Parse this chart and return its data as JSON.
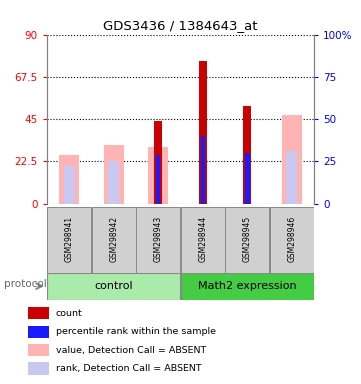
{
  "title": "GDS3436 / 1384643_at",
  "samples": [
    "GSM298941",
    "GSM298942",
    "GSM298943",
    "GSM298944",
    "GSM298945",
    "GSM298946"
  ],
  "left_ylim": [
    0,
    90
  ],
  "left_yticks": [
    0,
    22.5,
    45,
    67.5,
    90
  ],
  "left_yticklabels": [
    "0",
    "22.5",
    "45",
    "67.5",
    "90"
  ],
  "right_yticks": [
    0,
    25,
    50,
    75,
    100
  ],
  "right_yticklabels": [
    "0",
    "25",
    "50",
    "75",
    "100%"
  ],
  "count_values": [
    0,
    0,
    44,
    76,
    52,
    0
  ],
  "percentile_values": [
    0,
    0,
    29,
    40,
    30,
    0
  ],
  "value_absent": [
    26,
    31,
    30,
    0,
    0,
    47
  ],
  "rank_absent": [
    22,
    25,
    0,
    0,
    0,
    31
  ],
  "count_color": "#cc0000",
  "percentile_color": "#1a1aff",
  "value_absent_color": "#ffb3b3",
  "rank_absent_color": "#c8c8f0",
  "bg_color": "#ffffff",
  "plot_bg": "#ffffff",
  "legend_items": [
    {
      "label": "count",
      "color": "#cc0000"
    },
    {
      "label": "percentile rank within the sample",
      "color": "#1a1aff"
    },
    {
      "label": "value, Detection Call = ABSENT",
      "color": "#ffb3b3"
    },
    {
      "label": "rank, Detection Call = ABSENT",
      "color": "#c8c8f0"
    }
  ],
  "protocol_label": "protocol",
  "group_label_control": "control",
  "group_label_math2": "Math2 expression",
  "control_color": "#aaeaaa",
  "math2_color": "#44cc44"
}
